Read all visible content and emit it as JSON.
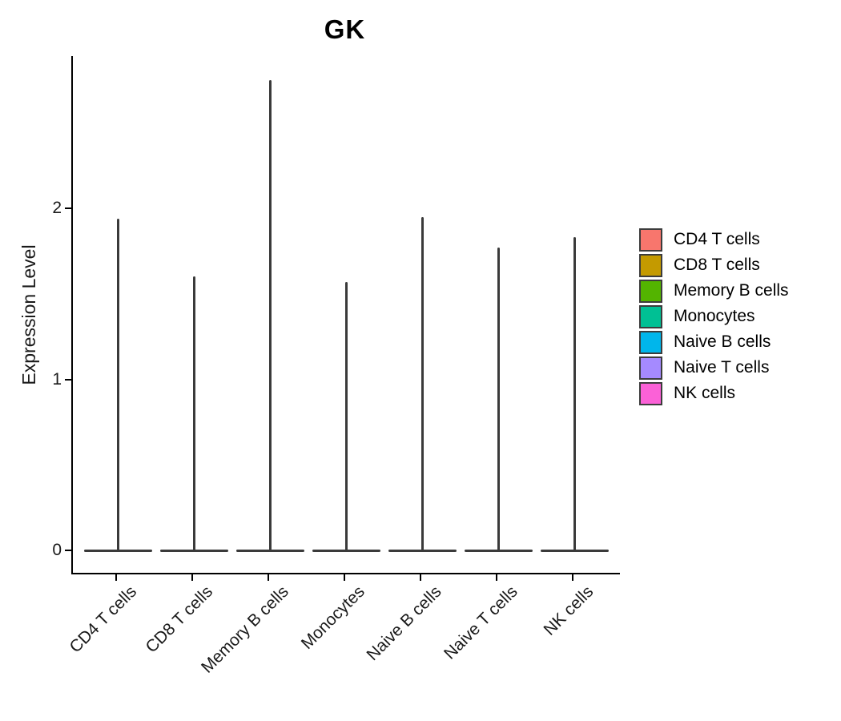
{
  "title": "GK",
  "axes": {
    "y_label": "Expression Level",
    "y_tick_labels": [
      "0",
      "1",
      "2"
    ],
    "x_tick_labels": [
      "CD4 T cells",
      "CD8 T cells",
      "Memory B cells",
      "Monocytes",
      "Naive B cells",
      "Naive T cells",
      "NK cells"
    ]
  },
  "legend": {
    "items": [
      {
        "label": "CD4 T cells",
        "color": "#F8766D"
      },
      {
        "label": "CD8 T cells",
        "color": "#C49A00"
      },
      {
        "label": "Memory B cells",
        "color": "#53B400"
      },
      {
        "label": "Monocytes",
        "color": "#00C094"
      },
      {
        "label": "Naive B cells",
        "color": "#00B6EB"
      },
      {
        "label": "Naive T cells",
        "color": "#A58AFF"
      },
      {
        "label": "NK cells",
        "color": "#FB61D7"
      }
    ]
  },
  "chart_data": {
    "type": "violin",
    "title": "GK",
    "xlabel": "",
    "ylabel": "Expression Level",
    "categories": [
      "CD4 T cells",
      "CD8 T cells",
      "Memory B cells",
      "Monocytes",
      "Naive B cells",
      "Naive T cells",
      "NK cells"
    ],
    "yticks": [
      0,
      1,
      2
    ],
    "ylim": [
      0,
      2.9
    ],
    "grid": false,
    "legend_position": "right",
    "distribution_note": "Density mass concentrated at 0 (wide flat base); extremely thin spike rising to the maximum expression value",
    "series": [
      {
        "name": "CD4 T cells",
        "color": "#F8766D",
        "min": 0,
        "max": 1.94
      },
      {
        "name": "CD8 T cells",
        "color": "#C49A00",
        "min": 0,
        "max": 1.6
      },
      {
        "name": "Memory B cells",
        "color": "#53B400",
        "min": 0,
        "max": 2.75
      },
      {
        "name": "Monocytes",
        "color": "#00C094",
        "min": 0,
        "max": 1.57
      },
      {
        "name": "Naive B cells",
        "color": "#00B6EB",
        "min": 0,
        "max": 1.95
      },
      {
        "name": "Naive T cells",
        "color": "#A58AFF",
        "min": 0,
        "max": 1.77
      },
      {
        "name": "NK cells",
        "color": "#FB61D7",
        "min": 0,
        "max": 1.83
      }
    ]
  },
  "colors": {
    "violin": "#3a3a3a",
    "axis": "#000000",
    "background": "#ffffff"
  }
}
